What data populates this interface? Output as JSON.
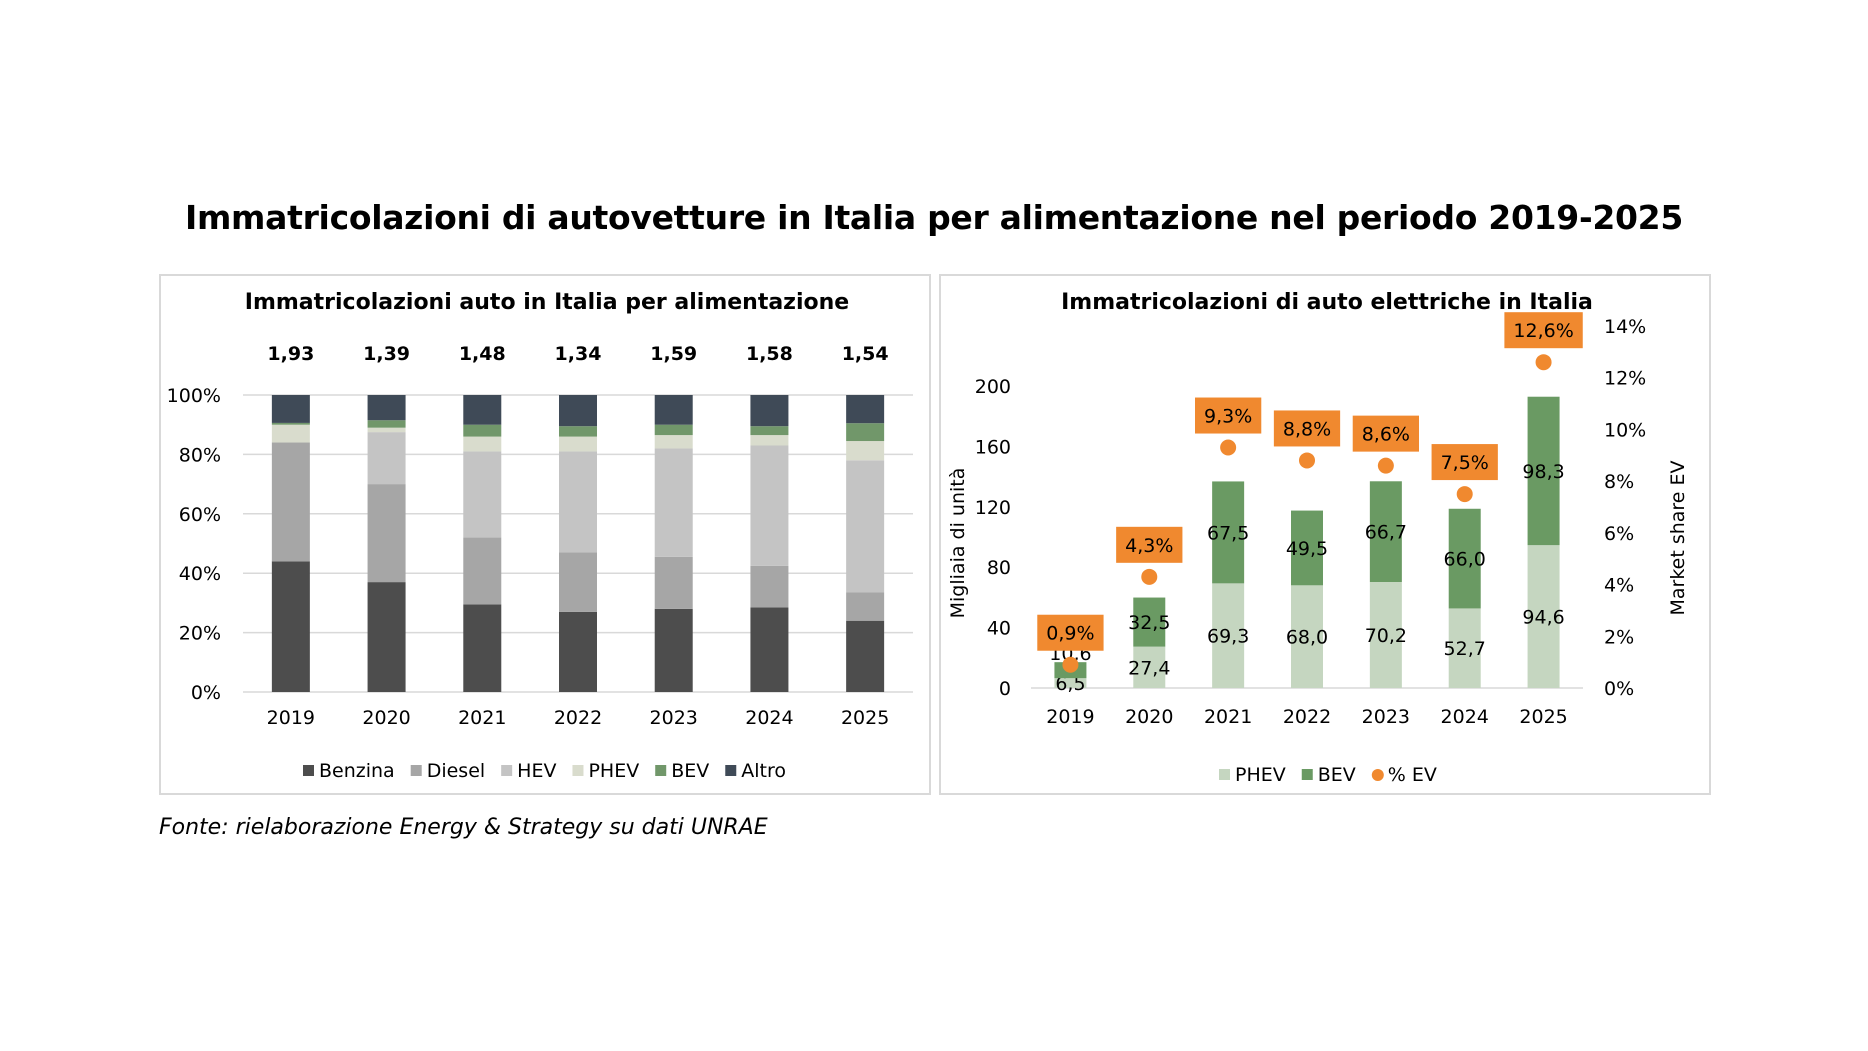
{
  "title": "Immatricolazioni di autovetture in Italia per alimentazione nel periodo 2019-2025",
  "source": "Fonte: rielaborazione Energy & Strategy su dati UNRAE",
  "chart_data": [
    {
      "type": "bar",
      "stacked": "percent",
      "title": "Immatricolazioni auto in Italia per alimentazione",
      "categories": [
        "2019",
        "2020",
        "2021",
        "2022",
        "2023",
        "2024",
        "2025"
      ],
      "totals": [
        "1,93",
        "1,39",
        "1,48",
        "1,34",
        "1,59",
        "1,58",
        "1,54"
      ],
      "y_ticks": [
        "0%",
        "20%",
        "40%",
        "60%",
        "80%",
        "100%"
      ],
      "ylim": [
        0,
        100
      ],
      "grid": true,
      "legend_position": "bottom",
      "series": [
        {
          "name": "Benzina",
          "color": "#4d4d4d",
          "values": [
            44,
            37,
            29.5,
            27,
            28,
            28.5,
            24
          ]
        },
        {
          "name": "Diesel",
          "color": "#a6a6a6",
          "values": [
            40,
            33,
            22.5,
            20,
            17.5,
            14,
            9.5
          ]
        },
        {
          "name": "HEV",
          "color": "#c4c4c4",
          "values": [
            0,
            17.5,
            29,
            34,
            36.5,
            40.5,
            44.5
          ]
        },
        {
          "name": "PHEV",
          "color": "#d9dccd",
          "values": [
            6,
            1.5,
            5,
            5,
            4.5,
            3.5,
            6.5
          ]
        },
        {
          "name": "BEV",
          "color": "#71976a",
          "values": [
            0.6,
            2.5,
            4,
            3.5,
            3.5,
            3,
            6
          ]
        },
        {
          "name": "Altro",
          "color": "#3f4a57",
          "values": [
            9.4,
            8.5,
            10,
            10.5,
            10,
            10.5,
            9.5
          ]
        }
      ]
    },
    {
      "type": "bar",
      "stacked": true,
      "title": "Immatricolazioni di auto elettriche in Italia",
      "categories": [
        "2019",
        "2020",
        "2021",
        "2022",
        "2023",
        "2024",
        "2025"
      ],
      "ylabel": "Migliaia di unità",
      "y2label": "Market share EV",
      "ylim": [
        0,
        200
      ],
      "y2lim": [
        0,
        14
      ],
      "y_ticks": [
        "0",
        "40",
        "80",
        "120",
        "160",
        "200"
      ],
      "y2_ticks": [
        "0%",
        "2%",
        "4%",
        "6%",
        "8%",
        "10%",
        "12%",
        "14%"
      ],
      "grid": false,
      "legend_position": "bottom",
      "series": [
        {
          "name": "PHEV",
          "color": "#c5d6c0",
          "values": [
            6.5,
            27.4,
            69.3,
            68.0,
            70.2,
            52.7,
            94.6
          ],
          "labels": [
            "6,5",
            "27,4",
            "69,3",
            "68,0",
            "70,2",
            "52,7",
            "94,6"
          ]
        },
        {
          "name": "BEV",
          "color": "#6a9a63",
          "values": [
            10.6,
            32.5,
            67.5,
            49.5,
            66.7,
            66.0,
            98.3
          ],
          "labels": [
            "10,6",
            "32,5",
            "67,5",
            "49,5",
            "66,7",
            "66,0",
            "98,3"
          ]
        }
      ],
      "line_series": {
        "name": "% EV",
        "color": "#f0892f",
        "axis": "secondary",
        "values": [
          0.9,
          4.3,
          9.3,
          8.8,
          8.6,
          7.5,
          12.6
        ],
        "labels": [
          "0,9%",
          "4,3%",
          "9,3%",
          "8,8%",
          "8,6%",
          "7,5%",
          "12,6%"
        ]
      }
    }
  ]
}
